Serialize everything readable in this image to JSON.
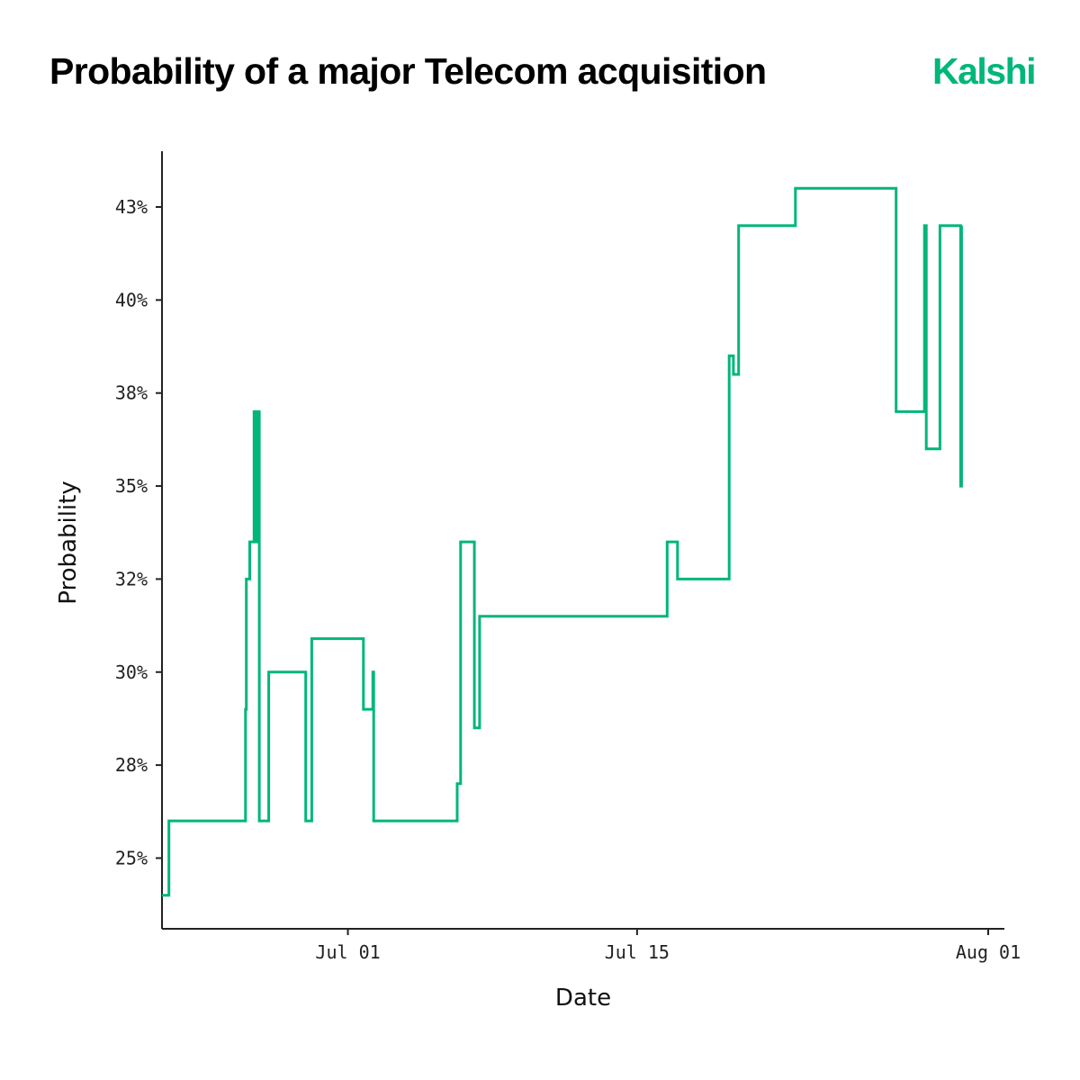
{
  "title": "Probability of a major Telecom acquisition",
  "brand": {
    "name": "Kalshi",
    "color": "#00B67A"
  },
  "chart_data": {
    "type": "line",
    "step": true,
    "xlabel": "Date",
    "ylabel": "Probability",
    "xlim": [
      "2024-06-22",
      "2024-08-01"
    ],
    "ylim": [
      23.1,
      44.0
    ],
    "xticks": [
      {
        "date": "2024-07-01",
        "label": "Jul 01"
      },
      {
        "date": "2024-07-15",
        "label": "Jul 15"
      },
      {
        "date": "2024-08-01",
        "label": "Aug 01"
      }
    ],
    "yticks": [
      {
        "value": 25,
        "label": "25%"
      },
      {
        "value": 27.5,
        "label": "28%"
      },
      {
        "value": 30,
        "label": "30%"
      },
      {
        "value": 32.5,
        "label": "32%"
      },
      {
        "value": 35,
        "label": "35%"
      },
      {
        "value": 37.5,
        "label": "38%"
      },
      {
        "value": 40,
        "label": "40%"
      },
      {
        "value": 42.5,
        "label": "43%"
      }
    ],
    "grid": false,
    "series": [
      {
        "color": "#00B67A",
        "points": [
          [
            "2024-06-22T00:00",
            24.0
          ],
          [
            "2024-06-22T08:00",
            26.0
          ],
          [
            "2024-06-26T01:00",
            29.0
          ],
          [
            "2024-06-26T02:00",
            32.5
          ],
          [
            "2024-06-26T06:00",
            33.5
          ],
          [
            "2024-06-26T11:00",
            37.0
          ],
          [
            "2024-06-26T12:00",
            33.5
          ],
          [
            "2024-06-26T14:00",
            37.0
          ],
          [
            "2024-06-26T17:00",
            26.0
          ],
          [
            "2024-06-27T04:00",
            30.0
          ],
          [
            "2024-06-28T23:00",
            26.0
          ],
          [
            "2024-06-29T06:00",
            30.9
          ],
          [
            "2024-07-01T18:00",
            29.0
          ],
          [
            "2024-07-02T05:00",
            30.0
          ],
          [
            "2024-07-02T06:00",
            26.0
          ],
          [
            "2024-07-06T07:00",
            27.0
          ],
          [
            "2024-07-06T11:00",
            33.5
          ],
          [
            "2024-07-07T03:00",
            28.5
          ],
          [
            "2024-07-07T09:00",
            31.5
          ],
          [
            "2024-07-16T11:00",
            33.5
          ],
          [
            "2024-07-16T23:00",
            32.5
          ],
          [
            "2024-07-19T11:00",
            38.5
          ],
          [
            "2024-07-19T16:00",
            38.0
          ],
          [
            "2024-07-19T22:00",
            42.0
          ],
          [
            "2024-07-22T16:00",
            43.0
          ],
          [
            "2024-07-27T13:00",
            37.0
          ],
          [
            "2024-07-28T22:00",
            42.0
          ],
          [
            "2024-07-29T00:00",
            36.0
          ],
          [
            "2024-07-29T16:00",
            42.0
          ],
          [
            "2024-07-30T16:00",
            35.0
          ],
          [
            "2024-07-30T17:00",
            42.0
          ]
        ]
      }
    ]
  }
}
